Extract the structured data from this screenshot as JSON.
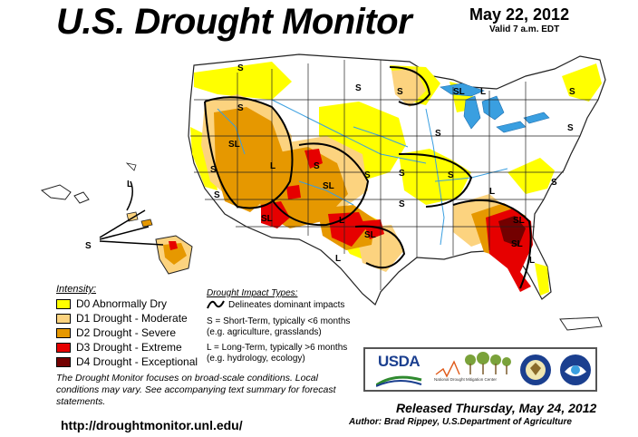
{
  "header": {
    "title": "U.S. Drought Monitor",
    "date": "May 22, 2012",
    "valid": "Valid 7 a.m. EDT"
  },
  "legend": {
    "intensity_title": "Intensity:",
    "items": [
      {
        "label": "D0 Abnormally Dry",
        "color": "#ffff00"
      },
      {
        "label": "D1 Drought - Moderate",
        "color": "#fcd37f"
      },
      {
        "label": "D2 Drought - Severe",
        "color": "#e69800"
      },
      {
        "label": "D3 Drought - Extreme",
        "color": "#e60000"
      },
      {
        "label": "D4 Drought - Exceptional",
        "color": "#730000"
      }
    ]
  },
  "impacts": {
    "title": "Drought Impact Types:",
    "delineates": "Delineates dominant impacts",
    "short_term": "S = Short-Term, typically <6 months",
    "short_term_eg": "(e.g. agriculture, grasslands)",
    "long_term": "L = Long-Term, typically >6 months",
    "long_term_eg": "(e.g. hydrology, ecology)"
  },
  "map_labels": {
    "s": "S",
    "l": "L",
    "sl": "SL"
  },
  "note": "The Drought Monitor focuses on broad-scale conditions. Local conditions may vary. See accompanying text summary for forecast statements.",
  "url": "http://droughtmonitor.unl.edu/",
  "logos": {
    "usda": "USDA",
    "ndmc": "National Drought Mitigation Center"
  },
  "released": "Released Thursday, May 24, 2012",
  "author": "Author: Brad Rippey, U.S.Department of Agriculture",
  "colors": {
    "water": "#3a9fe0",
    "state_line": "#222222",
    "land": "#ffffff"
  }
}
